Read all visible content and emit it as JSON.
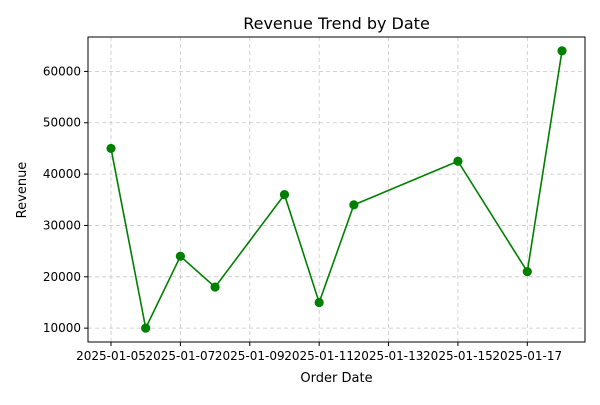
{
  "chart_data": {
    "type": "line",
    "title": "Revenue Trend by Date",
    "xlabel": "Order Date",
    "ylabel": "Revenue",
    "x": [
      "2025-01-05",
      "2025-01-06",
      "2025-01-07",
      "2025-01-08",
      "2025-01-10",
      "2025-01-11",
      "2025-01-12",
      "2025-01-15",
      "2025-01-17",
      "2025-01-18"
    ],
    "series": [
      {
        "values": [
          45000,
          10000,
          24000,
          18000,
          36000,
          15000,
          34000,
          42500,
          21000,
          64000
        ],
        "color": "#008000",
        "marker": "circle"
      }
    ],
    "x_ticks": [
      "2025-01-05",
      "2025-01-07",
      "2025-01-09",
      "2025-01-11",
      "2025-01-13",
      "2025-01-15",
      "2025-01-17"
    ],
    "y_ticks": [
      10000,
      20000,
      30000,
      40000,
      50000,
      60000
    ],
    "xlim": [
      "2025-01-05",
      "2025-01-18"
    ],
    "ylim": [
      7300,
      66700
    ],
    "grid": true,
    "legend": "none"
  }
}
